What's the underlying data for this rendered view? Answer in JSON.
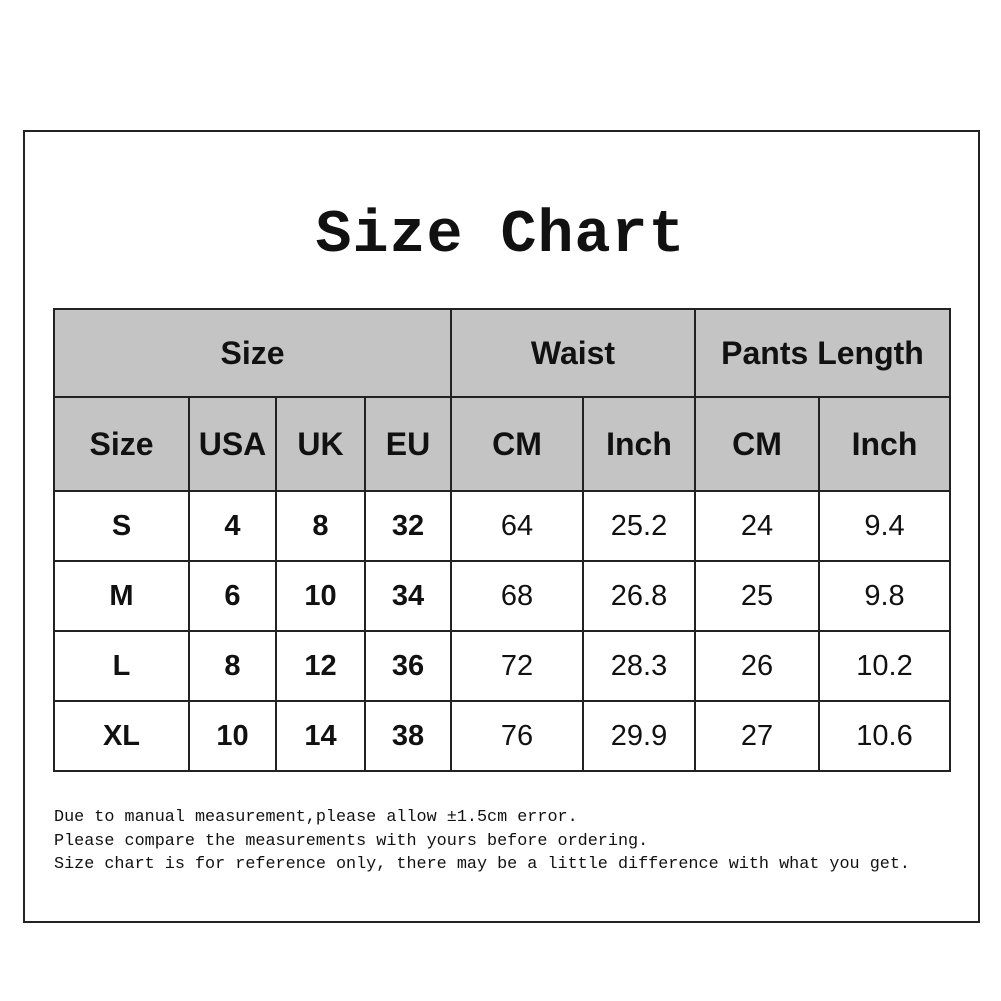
{
  "title": "Size Chart",
  "table": {
    "group_headers": [
      "Size",
      "Waist",
      "Pants Length"
    ],
    "sub_headers": [
      "Size",
      "USA",
      "UK",
      "EU",
      "CM",
      "Inch",
      "CM",
      "Inch"
    ],
    "rows": [
      [
        "S",
        "4",
        "8",
        "32",
        "64",
        "25.2",
        "24",
        "9.4"
      ],
      [
        "M",
        "6",
        "10",
        "34",
        "68",
        "26.8",
        "25",
        "9.8"
      ],
      [
        "L",
        "8",
        "12",
        "36",
        "72",
        "28.3",
        "26",
        "10.2"
      ],
      [
        "XL",
        "10",
        "14",
        "38",
        "76",
        "29.9",
        "27",
        "10.6"
      ]
    ]
  },
  "notes": [
    "Due to manual measurement,please allow ±1.5cm error.",
    "Please compare the measurements with yours before ordering.",
    "Size chart is for reference only, there may be a little difference with what you get."
  ],
  "colors": {
    "header_bg": "#c4c4c4",
    "border": "#222222",
    "text": "#111111"
  }
}
